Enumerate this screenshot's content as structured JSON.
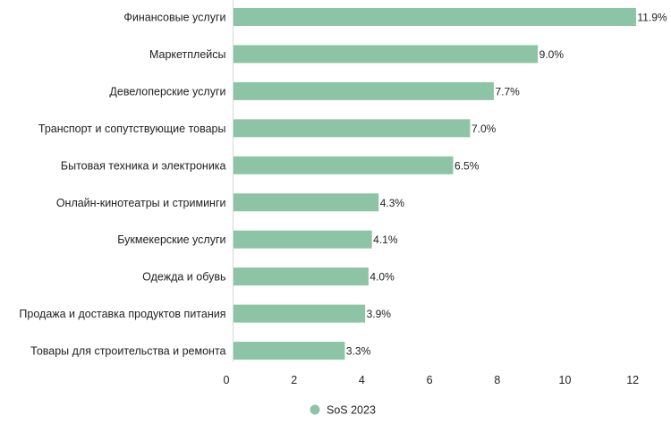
{
  "chart_data": {
    "type": "bar",
    "orientation": "horizontal",
    "categories": [
      "Финансовые услуги",
      "Маркетплейсы",
      "Девелоперские услуги",
      "Транспорт и сопутствующие товары",
      "Бытовая техника и электроника",
      "Онлайн-кинотеатры и стриминги",
      "Букмекерские услуги",
      "Одежда и обувь",
      "Продажа и доставка продуктов питания",
      "Товары для строительства и ремонта"
    ],
    "series": [
      {
        "name": "SoS 2023",
        "values": [
          11.9,
          9.0,
          7.7,
          7.0,
          6.5,
          4.3,
          4.1,
          4.0,
          3.9,
          3.3
        ],
        "value_labels": [
          "11.9%",
          "9.0%",
          "7.7%",
          "7.0%",
          "6.5%",
          "4.3%",
          "4.1%",
          "4.0%",
          "3.9%",
          "3.3%"
        ],
        "color": "#8dc4a6"
      }
    ],
    "x_ticks": [
      "0",
      "2",
      "4",
      "6",
      "8",
      "10",
      "12"
    ],
    "xlim": [
      0,
      12.5
    ],
    "xlabel": "",
    "ylabel": "",
    "title": "",
    "grid": false,
    "legend_position": "bottom-center"
  }
}
